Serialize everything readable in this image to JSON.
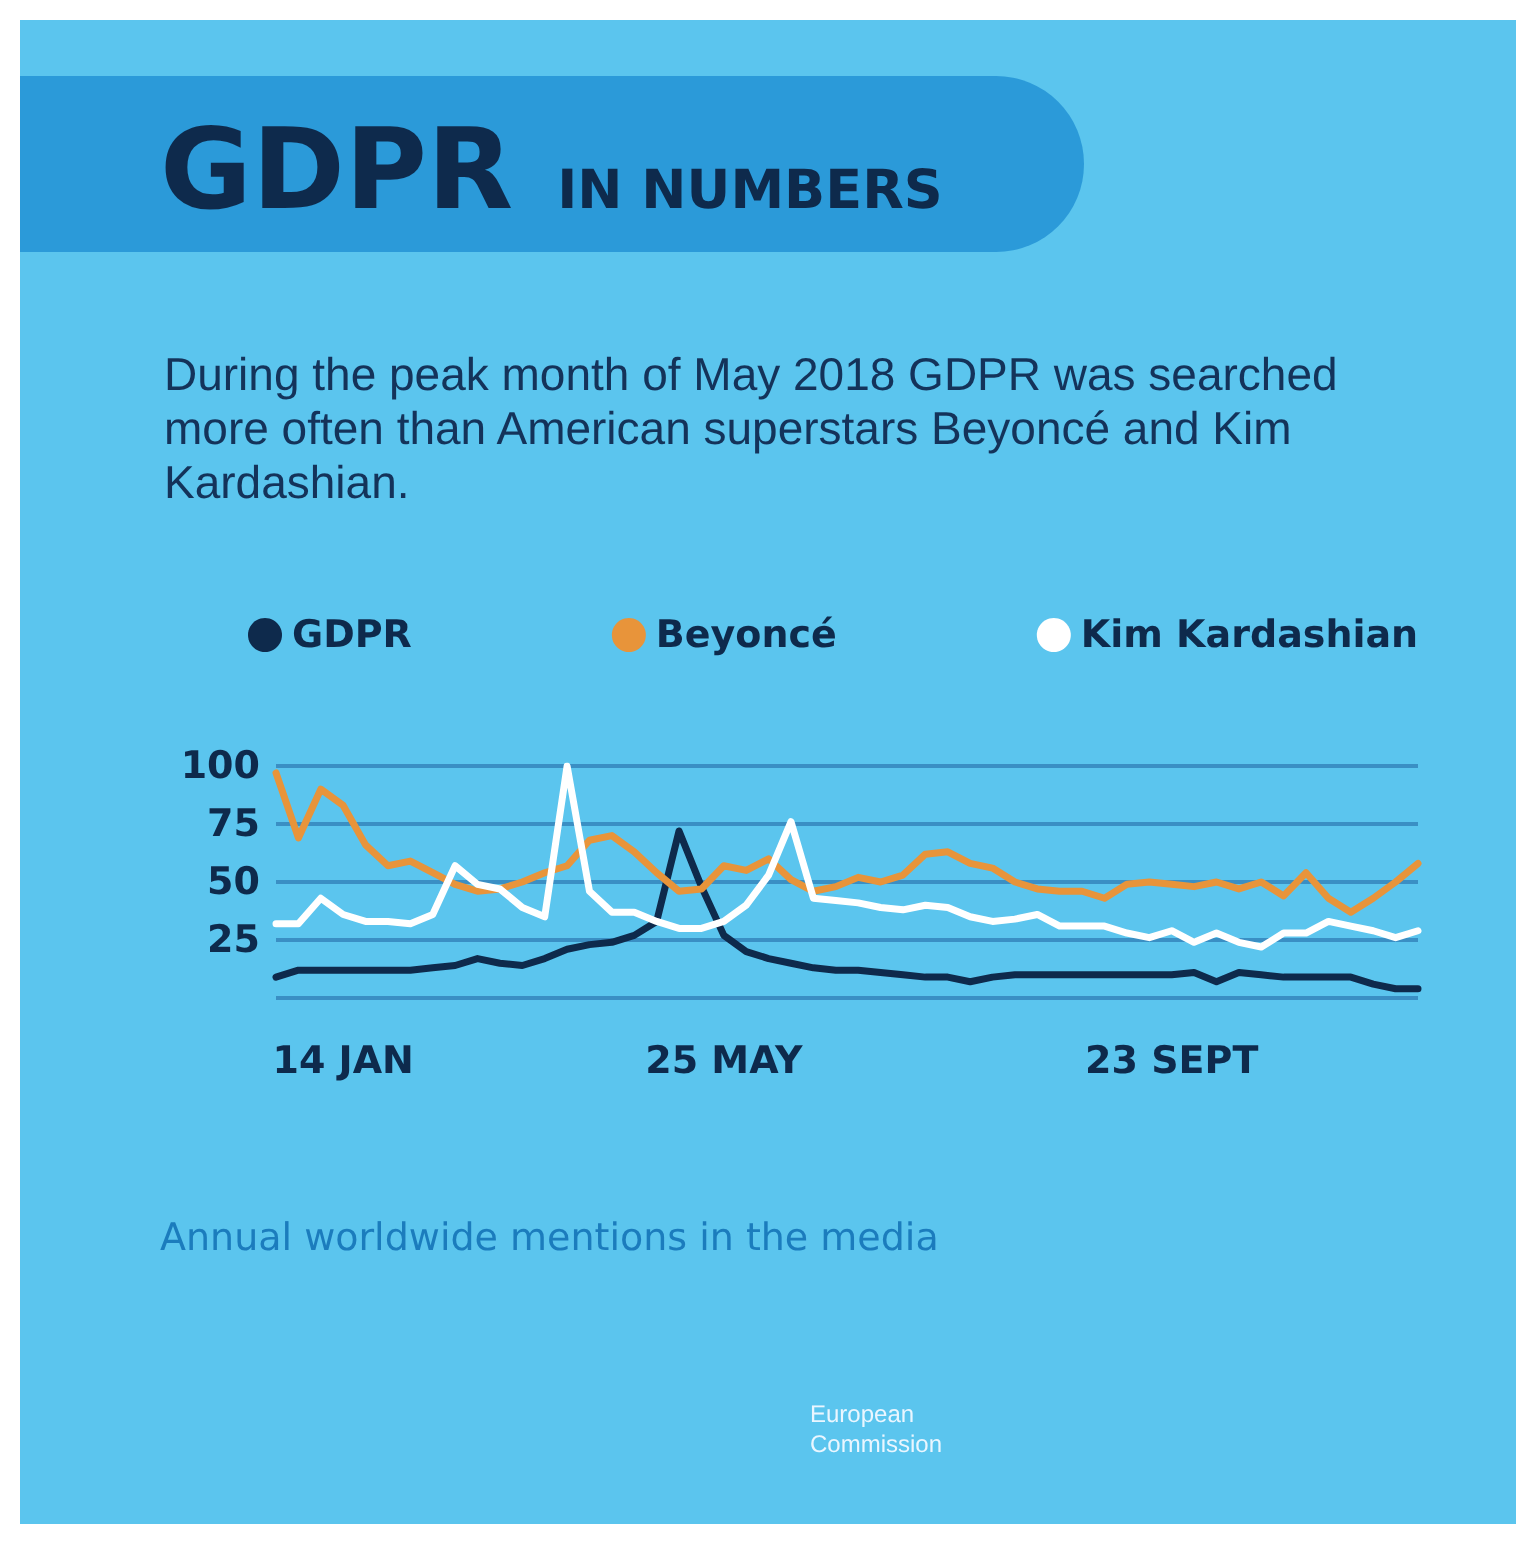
{
  "chart_data": {
    "type": "line",
    "title": "GDPR IN NUMBERS",
    "subtitle": "During the peak month of May 2018 GDPR was searched more often than American superstars Beyoncé and Kim Kardashian.",
    "categories": [
      null,
      null,
      null,
      "14 JAN",
      null,
      null,
      null,
      null,
      null,
      null,
      null,
      null,
      null,
      null,
      null,
      null,
      null,
      null,
      null,
      null,
      "25 MAY",
      null,
      null,
      null,
      null,
      null,
      null,
      null,
      null,
      null,
      null,
      null,
      null,
      null,
      null,
      null,
      null,
      null,
      null,
      null,
      "23 SEPT",
      null,
      null,
      null,
      null,
      null,
      null,
      null,
      null,
      null,
      null,
      null
    ],
    "series": [
      {
        "name": "GDPR",
        "color": "#0e2a4c",
        "values": [
          9,
          12,
          12,
          12,
          12,
          12,
          12,
          13,
          14,
          17,
          15,
          14,
          17,
          21,
          23,
          24,
          27,
          33,
          72,
          48,
          27,
          20,
          17,
          15,
          13,
          12,
          12,
          11,
          10,
          9,
          9,
          7,
          9,
          10,
          10,
          10,
          10,
          10,
          10,
          10,
          10,
          11,
          7,
          11,
          10,
          9,
          9,
          9,
          9,
          6,
          4,
          4
        ]
      },
      {
        "name": "Beyoncé",
        "color": "#e8943a",
        "values": [
          97,
          69,
          90,
          83,
          66,
          57,
          59,
          54,
          49,
          46,
          47,
          50,
          54,
          57,
          68,
          70,
          63,
          54,
          46,
          47,
          57,
          55,
          60,
          51,
          46,
          48,
          52,
          50,
          53,
          62,
          63,
          58,
          56,
          50,
          47,
          46,
          46,
          43,
          49,
          50,
          49,
          48,
          50,
          47,
          50,
          44,
          54,
          43,
          37,
          43,
          50,
          58
        ]
      },
      {
        "name": "Kim Kardashian",
        "color": "#ffffff",
        "values": [
          32,
          32,
          43,
          36,
          33,
          33,
          32,
          36,
          57,
          49,
          47,
          39,
          35,
          100,
          46,
          37,
          37,
          33,
          30,
          30,
          33,
          40,
          53,
          76,
          43,
          42,
          41,
          39,
          38,
          40,
          39,
          35,
          33,
          34,
          36,
          31,
          31,
          31,
          28,
          26,
          29,
          24,
          28,
          24,
          22,
          28,
          28,
          33,
          31,
          29,
          26,
          29
        ]
      }
    ],
    "ylim": [
      0,
      100
    ],
    "yticks": [
      {
        "value": 0,
        "label": null
      },
      25,
      50,
      75,
      100
    ],
    "grid": "y",
    "legend": "top",
    "annotations": [
      "Annual worldwide mentions in the media",
      "European Commission"
    ]
  }
}
